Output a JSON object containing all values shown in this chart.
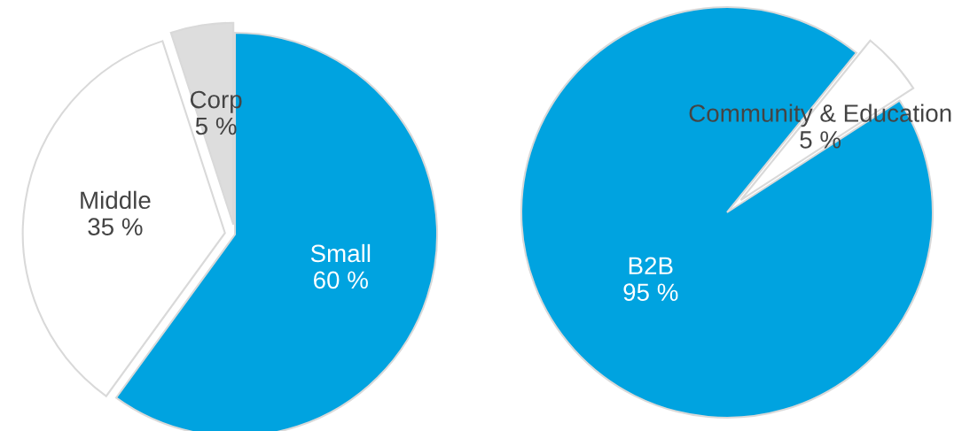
{
  "chart_data": [
    {
      "type": "pie",
      "categories": [
        "Small",
        "Middle",
        "Corp"
      ],
      "values": [
        60,
        35,
        5
      ],
      "colors": [
        "#00a3e0",
        "#ffffff",
        "#dddddd"
      ],
      "value_labels": [
        "60 %",
        "35 %",
        "5 %"
      ]
    },
    {
      "type": "pie",
      "categories": [
        "B2B",
        "Community & Education"
      ],
      "values": [
        95,
        5
      ],
      "colors": [
        "#00a3e0",
        "#ffffff"
      ],
      "value_labels": [
        "95 %",
        "5 %"
      ]
    }
  ]
}
